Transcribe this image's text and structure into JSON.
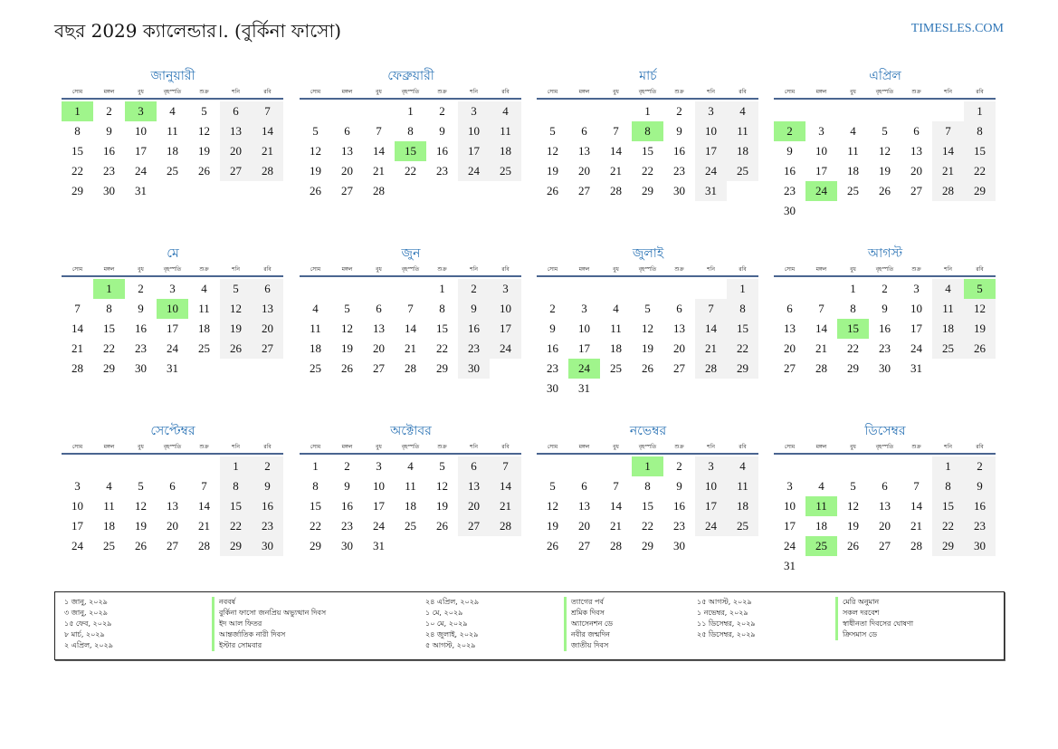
{
  "header": {
    "title": "বছর 2029 ক্যালেন্ডার।. (বুর্কিনা ফাসো)",
    "site": "TIMESLES.COM"
  },
  "year": 2029,
  "weekdays": [
    "সোম",
    "মঙ্গল",
    "বুধ",
    "বৃহস্পতি",
    "শুক্র",
    "শনি",
    "রবি"
  ],
  "colors": {
    "holiday": "#a0f58c",
    "weekend": "#f2f2f2",
    "accent": "#2e75b6"
  },
  "months": [
    {
      "name": "জানুয়ারী",
      "holidays": [
        1,
        3
      ]
    },
    {
      "name": "ফেব্রুয়ারী",
      "holidays": [
        15
      ]
    },
    {
      "name": "মার্চ",
      "holidays": [
        8
      ]
    },
    {
      "name": "এপ্রিল",
      "holidays": [
        2,
        24
      ]
    },
    {
      "name": "মে",
      "holidays": [
        1,
        10
      ]
    },
    {
      "name": "জুন",
      "holidays": []
    },
    {
      "name": "জুলাই",
      "holidays": [
        24
      ]
    },
    {
      "name": "আগস্ট",
      "holidays": [
        5,
        15
      ]
    },
    {
      "name": "সেপ্টেম্বর",
      "holidays": []
    },
    {
      "name": "অক্টোবর",
      "holidays": []
    },
    {
      "name": "নভেম্বর",
      "holidays": [
        1
      ]
    },
    {
      "name": "ডিসেম্বর",
      "holidays": [
        11,
        25
      ]
    }
  ],
  "holiday_list": [
    {
      "date": "১ জানু, ২০২৯",
      "name": "নববর্ষ"
    },
    {
      "date": "৩ জানু, ২০২৯",
      "name": "বুর্কিনা ফাসো জনপ্রিয় অভ্যুত্থান দিবস"
    },
    {
      "date": "১৫ ফেব, ২০২৯",
      "name": "ইদ আল ফিতর"
    },
    {
      "date": "৮ মার্চ, ২০২৯",
      "name": "আন্তর্জাতিক নারী দিবস"
    },
    {
      "date": "২ এপ্রিল, ২০২৯",
      "name": "ইস্টার সোমবার"
    },
    {
      "date": "২৪ এপ্রিল, ২০২৯",
      "name": "ত্যাগের পর্ব"
    },
    {
      "date": "১ মে, ২০২৯",
      "name": "শ্রমিক দিবস"
    },
    {
      "date": "১০ মে, ২০২৯",
      "name": "অ্যাসেনশন ডে"
    },
    {
      "date": "২৪ জুলাই, ২০২৯",
      "name": "নবীর জন্মদিন"
    },
    {
      "date": "৫ আগস্ট, ২০২৯",
      "name": "জাতীয় দিবস"
    },
    {
      "date": "১৫ আগস্ট, ২০২৯",
      "name": "মেরি অনুমান"
    },
    {
      "date": "১ নভেম্বর, ২০২৯",
      "name": "সকল দরবেশ"
    },
    {
      "date": "১১ ডিসেম্বর, ২০২৯",
      "name": "স্বাধীনতা দিবসের ঘোষণা"
    },
    {
      "date": "২৫ ডিসেম্বর, ২০২৯",
      "name": "ক্রিসমাস ডে"
    }
  ]
}
